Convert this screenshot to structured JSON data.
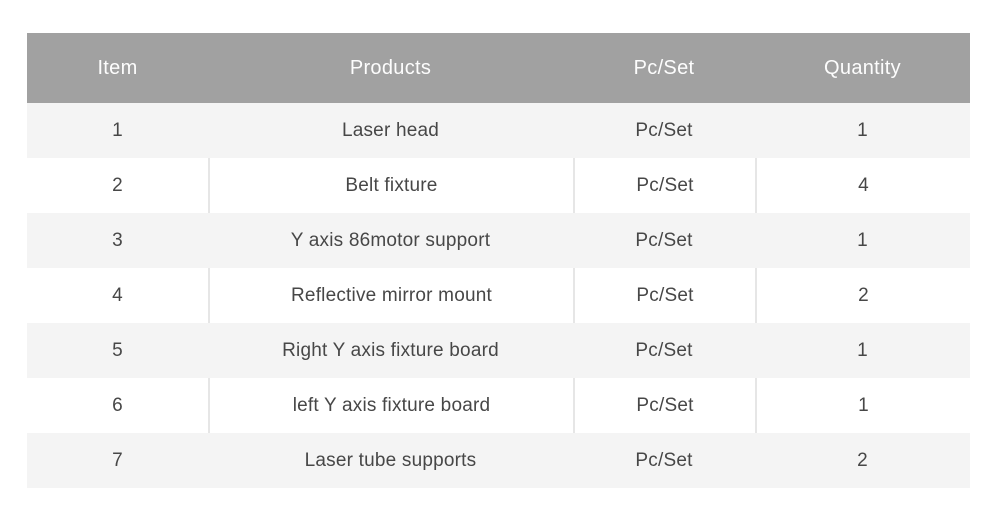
{
  "page": {
    "background": "#ffffff"
  },
  "colors": {
    "header_background": "#a1a1a1",
    "header_text": "#fdfdfd",
    "row_stripe": "#f4f4f4",
    "row_white": "#ffffff",
    "divider": "#e6e6e6",
    "body_text": "#474747"
  },
  "table": {
    "columns": [
      {
        "key": "item",
        "label": "Item"
      },
      {
        "key": "product",
        "label": "Products"
      },
      {
        "key": "pc_set",
        "label": "Pc/Set"
      },
      {
        "key": "quantity",
        "label": "Quantity"
      }
    ],
    "rows": [
      {
        "item": "1",
        "product": "Laser head",
        "pc_set": "Pc/Set",
        "quantity": "1"
      },
      {
        "item": "2",
        "product": "Belt fixture",
        "pc_set": "Pc/Set",
        "quantity": "4"
      },
      {
        "item": "3",
        "product": "Y axis 86motor support",
        "pc_set": "Pc/Set",
        "quantity": "1"
      },
      {
        "item": "4",
        "product": "Reflective mirror mount",
        "pc_set": "Pc/Set",
        "quantity": "2"
      },
      {
        "item": "5",
        "product": "Right Y axis fixture board",
        "pc_set": "Pc/Set",
        "quantity": "1"
      },
      {
        "item": "6",
        "product": "left Y axis fixture board",
        "pc_set": "Pc/Set",
        "quantity": "1"
      },
      {
        "item": "7",
        "product": "Laser tube supports",
        "pc_set": "Pc/Set",
        "quantity": "2"
      }
    ]
  }
}
